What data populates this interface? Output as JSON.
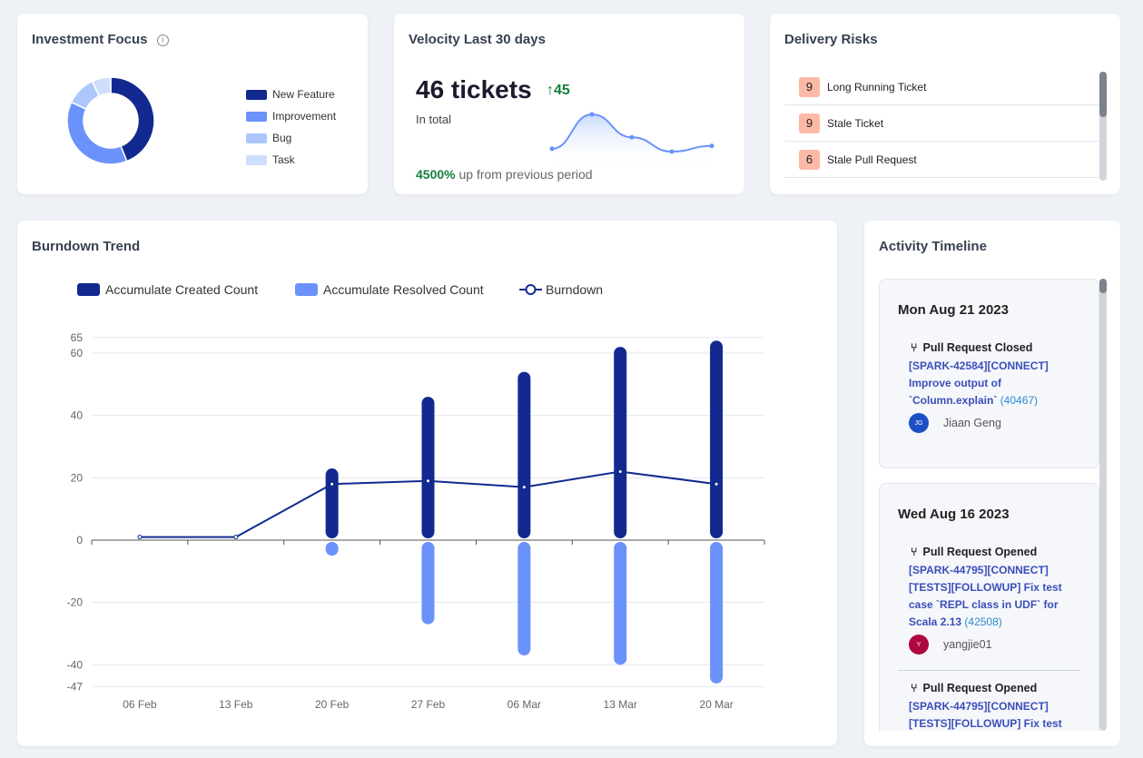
{
  "investment_focus": {
    "title": "Investment Focus",
    "info_icon": "info-icon",
    "chart_data": {
      "type": "pie",
      "style": "donut",
      "categories": [
        "New Feature",
        "Improvement",
        "Bug",
        "Task"
      ],
      "values": [
        44,
        38,
        11,
        7
      ],
      "colors": [
        "#122a8f",
        "#6a92fa",
        "#adc7fc",
        "#cfdefd"
      ],
      "legend_placement": "right"
    }
  },
  "velocity": {
    "title": "Velocity Last 30 days",
    "count": "46 tickets",
    "delta": "45",
    "delta_icon": "arrow-up-icon",
    "subtitle": "In total",
    "percent": "4500%",
    "percent_text": "up from previous period",
    "accent": "#15803d",
    "chart_data": {
      "type": "area",
      "values": [
        2,
        14,
        6,
        1,
        3
      ],
      "color": "#6a92fa"
    }
  },
  "delivery_risks": {
    "title": "Delivery Risks",
    "items": [
      {
        "count": "9",
        "label": "Long Running Ticket"
      },
      {
        "count": "9",
        "label": "Stale Ticket"
      },
      {
        "count": "6",
        "label": "Stale Pull Request"
      }
    ]
  },
  "burndown": {
    "title": "Burndown Trend",
    "chart_data": {
      "type": "bar",
      "categories": [
        "06 Feb",
        "13 Feb",
        "20 Feb",
        "27 Feb",
        "06 Mar",
        "13 Mar",
        "20 Mar"
      ],
      "series": [
        {
          "name": "Accumulate Created Count",
          "type": "bar",
          "color": "#122a8f",
          "values": [
            0,
            0,
            23,
            46,
            54,
            62,
            64
          ]
        },
        {
          "name": "Accumulate Resolved Count",
          "type": "bar",
          "color": "#6a92fa",
          "values": [
            0,
            0,
            -5,
            -27,
            -37,
            -40,
            -46
          ]
        },
        {
          "name": "Burndown",
          "type": "line",
          "color": "#122a8f",
          "values": [
            1,
            1,
            18,
            19,
            17,
            22,
            18
          ]
        }
      ],
      "yticks": [
        65,
        60,
        40,
        20,
        0,
        -20,
        -40,
        -47
      ],
      "ylim": [
        -47,
        65
      ],
      "grid": true,
      "legend_placement": "top"
    }
  },
  "activity": {
    "title": "Activity Timeline",
    "groups": [
      {
        "date": "Mon Aug 21 2023",
        "events": [
          {
            "type": "Pull Request Closed",
            "icon": "git-branch-icon",
            "title": "[SPARK-42584][CONNECT] Improve output of `Column.explain`",
            "number": "(40467)",
            "user": "Jiaan Geng",
            "initials": "JG",
            "avatar_color": "#1d4fc4"
          }
        ]
      },
      {
        "date": "Wed Aug 16 2023",
        "events": [
          {
            "type": "Pull Request Opened",
            "icon": "git-branch-icon",
            "title": "[SPARK-44795][CONNECT][TESTS][FOLLOWUP] Fix test case `REPL class in UDF` for Scala 2.13",
            "number": "(42508)",
            "user": "yangjie01",
            "initials": "Y",
            "avatar_color": "#b0073f"
          },
          {
            "type": "Pull Request Opened",
            "icon": "git-branch-icon",
            "title": "[SPARK-44795][CONNECT][TESTS][FOLLOWUP] Fix test",
            "number": ""
          }
        ]
      }
    ]
  }
}
